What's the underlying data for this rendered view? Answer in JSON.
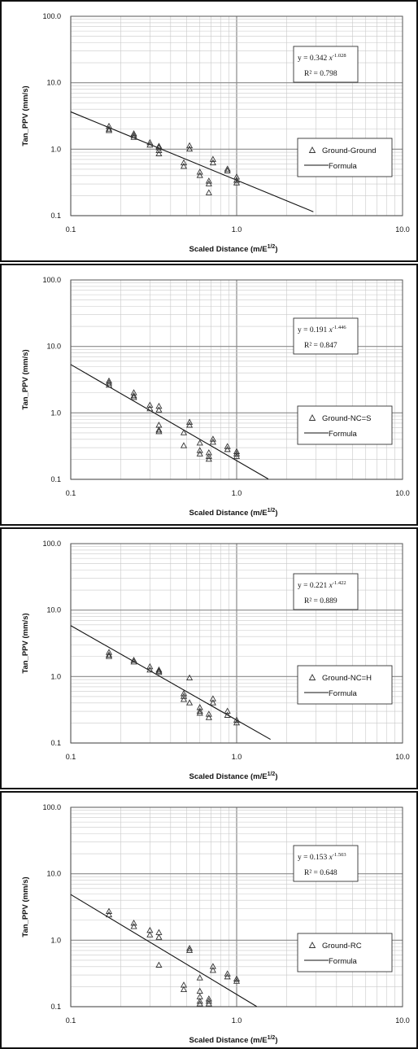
{
  "chart_data": [
    {
      "type": "scatter",
      "xlabel": "Scaled Distance",
      "xlabel_units": "(m/E",
      "xlabel_sup": "1/2",
      "xlabel_close": ")",
      "ylabel": "Tan_PPV (mm/s)",
      "xscale": "log",
      "yscale": "log",
      "xlim": [
        0.1,
        10.0
      ],
      "ylim": [
        0.1,
        100.0
      ],
      "xticks": [
        "0.1",
        "1.0",
        "10.0"
      ],
      "yticks": [
        "0.1",
        "1.0",
        "10.0",
        "100.0"
      ],
      "grid": true,
      "legend_position": "right",
      "equation": {
        "prefix": "y = 0.342",
        "base": "x",
        "exponent": "-1.028"
      },
      "r2": "R² = 0.798",
      "fit": {
        "a": 0.342,
        "b": -1.028,
        "x_range": [
          0.1,
          2.9
        ]
      },
      "series": [
        {
          "name": "Ground-Ground",
          "marker": "triangle",
          "x": [
            0.17,
            0.17,
            0.17,
            0.24,
            0.24,
            0.24,
            0.3,
            0.3,
            0.34,
            0.34,
            0.34,
            0.34,
            0.48,
            0.48,
            0.52,
            0.52,
            0.6,
            0.6,
            0.68,
            0.68,
            0.68,
            0.72,
            0.72,
            0.88,
            0.88,
            1.0,
            1.0,
            1.0
          ],
          "y": [
            2.2,
            2.0,
            1.9,
            1.7,
            1.6,
            1.5,
            1.25,
            1.15,
            1.1,
            1.05,
            0.95,
            0.85,
            0.62,
            0.55,
            1.12,
            1.0,
            0.45,
            0.4,
            0.33,
            0.3,
            0.22,
            0.7,
            0.62,
            0.5,
            0.47,
            0.38,
            0.34,
            0.31
          ]
        },
        {
          "name": "Formula",
          "type": "line"
        }
      ]
    },
    {
      "type": "scatter",
      "xlabel": "Scaled Distance",
      "xlabel_units": "(m/E",
      "xlabel_sup": "1/2",
      "xlabel_close": ")",
      "ylabel": "Tan_PPV (mm/s)",
      "xscale": "log",
      "yscale": "log",
      "xlim": [
        0.1,
        10.0
      ],
      "ylim": [
        0.1,
        100.0
      ],
      "xticks": [
        "0.1",
        "1.0",
        "10.0"
      ],
      "yticks": [
        "0.1",
        "1.0",
        "10.0",
        "100.0"
      ],
      "grid": true,
      "legend_position": "right",
      "equation": {
        "prefix": "y = 0.191",
        "base": "x",
        "exponent": "-1.446"
      },
      "r2": "R² = 0.847",
      "fit": {
        "a": 0.191,
        "b": -1.446,
        "x_range": [
          0.1,
          1.55
        ]
      },
      "series": [
        {
          "name": "Ground-NC=S",
          "marker": "triangle",
          "x": [
            0.17,
            0.17,
            0.17,
            0.24,
            0.24,
            0.24,
            0.3,
            0.3,
            0.34,
            0.34,
            0.34,
            0.34,
            0.34,
            0.48,
            0.48,
            0.52,
            0.52,
            0.6,
            0.6,
            0.6,
            0.68,
            0.68,
            0.68,
            0.72,
            0.72,
            0.88,
            0.88,
            1.0,
            1.0,
            1.0
          ],
          "y": [
            3.0,
            2.8,
            2.6,
            2.0,
            1.8,
            1.7,
            1.3,
            1.15,
            1.25,
            1.1,
            0.65,
            0.55,
            0.52,
            0.5,
            0.32,
            0.72,
            0.65,
            0.35,
            0.27,
            0.24,
            0.25,
            0.22,
            0.2,
            0.4,
            0.36,
            0.31,
            0.28,
            0.26,
            0.24,
            0.22
          ]
        },
        {
          "name": "Formula",
          "type": "line"
        }
      ]
    },
    {
      "type": "scatter",
      "xlabel": "Scaled Distance",
      "xlabel_units": "(m/E",
      "xlabel_sup": "1/2",
      "xlabel_close": ")",
      "ylabel": "Tan_PPV (mm/s)",
      "xscale": "log",
      "yscale": "log",
      "xlim": [
        0.1,
        10.0
      ],
      "ylim": [
        0.1,
        100.0
      ],
      "xticks": [
        "0.1",
        "1.0",
        "10.0"
      ],
      "yticks": [
        "0.1",
        "1.0",
        "10.0",
        "100.0"
      ],
      "grid": true,
      "legend_position": "right",
      "equation": {
        "prefix": "y = 0.221",
        "base": "x",
        "exponent": "-1.422"
      },
      "r2": "R² = 0.889",
      "fit": {
        "a": 0.221,
        "b": -1.422,
        "x_range": [
          0.1,
          1.6
        ]
      },
      "series": [
        {
          "name": "Ground-NC=H",
          "marker": "triangle",
          "x": [
            0.17,
            0.17,
            0.17,
            0.24,
            0.24,
            0.3,
            0.3,
            0.34,
            0.34,
            0.34,
            0.48,
            0.48,
            0.48,
            0.52,
            0.52,
            0.6,
            0.6,
            0.6,
            0.68,
            0.68,
            0.72,
            0.72,
            0.88,
            0.88,
            1.0,
            1.0
          ],
          "y": [
            2.3,
            2.1,
            2.0,
            1.75,
            1.65,
            1.4,
            1.25,
            1.25,
            1.2,
            1.15,
            0.55,
            0.5,
            0.45,
            0.95,
            0.4,
            0.34,
            0.3,
            0.28,
            0.27,
            0.24,
            0.46,
            0.4,
            0.3,
            0.26,
            0.22,
            0.2
          ]
        },
        {
          "name": "Formula",
          "type": "line"
        }
      ]
    },
    {
      "type": "scatter",
      "xlabel": "Scaled Distance",
      "xlabel_units": "(m/E",
      "xlabel_sup": "1/2",
      "xlabel_close": ")",
      "ylabel": "Tan_PPV (mm/s)",
      "xscale": "log",
      "yscale": "log",
      "xlim": [
        0.1,
        10.0
      ],
      "ylim": [
        0.1,
        100.0
      ],
      "xticks": [
        "0.1",
        "1.0",
        "10.0"
      ],
      "yticks": [
        "0.1",
        "1.0",
        "10.0",
        "100.0"
      ],
      "grid": true,
      "legend_position": "right",
      "equation": {
        "prefix": "y = 0.153",
        "base": "x",
        "exponent": "-1.503"
      },
      "r2": "R² = 0.648",
      "fit": {
        "a": 0.153,
        "b": -1.503,
        "x_range": [
          0.1,
          1.32
        ]
      },
      "series": [
        {
          "name": "Ground-RC",
          "marker": "triangle",
          "x": [
            0.17,
            0.17,
            0.24,
            0.24,
            0.3,
            0.3,
            0.34,
            0.34,
            0.34,
            0.48,
            0.48,
            0.52,
            0.52,
            0.6,
            0.6,
            0.6,
            0.6,
            0.6,
            0.68,
            0.68,
            0.68,
            0.72,
            0.72,
            0.88,
            0.88,
            1.0,
            1.0
          ],
          "y": [
            2.7,
            2.4,
            1.8,
            1.6,
            1.4,
            1.2,
            1.3,
            1.1,
            0.42,
            0.21,
            0.18,
            0.75,
            0.7,
            0.27,
            0.17,
            0.14,
            0.12,
            0.11,
            0.13,
            0.12,
            0.11,
            0.4,
            0.35,
            0.31,
            0.28,
            0.26,
            0.24
          ]
        },
        {
          "name": "Formula",
          "type": "line"
        }
      ]
    }
  ]
}
